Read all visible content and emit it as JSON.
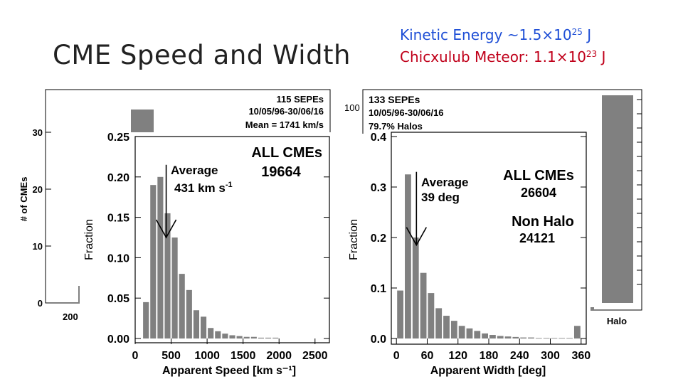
{
  "slide": {
    "title": "CME Speed and Width",
    "kinetic_energy": {
      "label": "Kinetic Energy ~1.5×10",
      "exponent": "25",
      "unit": " J"
    },
    "meteor": {
      "label": "Chicxulub Meteor: 1.1×10",
      "exponent": "23",
      "unit": " J"
    },
    "colors": {
      "title": "#222222",
      "kinetic": "#1f4fd6",
      "meteor": "#c0001a",
      "bar": "#808080"
    }
  },
  "chart_data": [
    {
      "type": "bar",
      "title": "",
      "xlabel": "Apparent Speed [km s⁻¹]",
      "ylabel": "Fraction",
      "ylim": [
        0,
        0.25
      ],
      "xlim": [
        0,
        2700
      ],
      "bin_width": 100,
      "x_ticks": [
        "0",
        "500",
        "1000",
        "1500",
        "2000",
        "2500"
      ],
      "y_ticks": [
        "0.00",
        "0.05",
        "0.10",
        "0.15",
        "0.20",
        "0.25"
      ],
      "bin_starts": [
        100,
        200,
        300,
        400,
        500,
        600,
        700,
        800,
        900,
        1000,
        1100,
        1200,
        1300,
        1400,
        1500,
        1600,
        1700,
        1800,
        1900
      ],
      "values": [
        0.045,
        0.19,
        0.2,
        0.155,
        0.125,
        0.08,
        0.06,
        0.035,
        0.027,
        0.013,
        0.009,
        0.006,
        0.004,
        0.003,
        0.002,
        0.002,
        0.001,
        0.001,
        0.001
      ],
      "annotations": {
        "all_label": "ALL CMEs",
        "all_count": "19664",
        "avg_label": "Average",
        "avg_value": "431 km s",
        "avg_unit_exp": "-1",
        "arrow_at": 431,
        "arrow_top": 0.215,
        "arrow_tip": 0.125
      }
    },
    {
      "type": "bar",
      "title": "",
      "xlabel": "Apparent Width [deg]",
      "ylabel": "Fraction",
      "ylim": [
        0,
        0.4
      ],
      "xlim": [
        -10,
        370
      ],
      "bin_width": 15,
      "x_ticks": [
        "0",
        "60",
        "120",
        "180",
        "240",
        "300",
        "360"
      ],
      "y_ticks": [
        "0.0",
        "0.1",
        "0.2",
        "0.3",
        "0.4"
      ],
      "bin_starts": [
        0,
        15,
        30,
        45,
        60,
        75,
        90,
        105,
        120,
        135,
        150,
        165,
        180,
        195,
        210,
        225,
        240,
        255,
        270,
        285,
        300,
        315,
        330,
        345
      ],
      "values": [
        0.095,
        0.325,
        0.2,
        0.13,
        0.09,
        0.06,
        0.045,
        0.035,
        0.025,
        0.02,
        0.015,
        0.01,
        0.007,
        0.005,
        0.004,
        0.003,
        0.002,
        0.002,
        0.001,
        0.001,
        0.001,
        0.001,
        0.001,
        0.025
      ],
      "annotations": {
        "all_label": "ALL CMEs",
        "all_count": "26604",
        "nonhalo_label": "Non Halo",
        "nonhalo_count": "24121",
        "avg_label": "Average",
        "avg_value": "39 deg",
        "arrow_at": 39,
        "arrow_top": 0.33,
        "arrow_tip": 0.185
      }
    },
    {
      "type": "bar",
      "title": "",
      "xlabel": "",
      "ylabel": "# of CMEs",
      "ylim": [
        0,
        35
      ],
      "y_ticks": [
        "0",
        "10",
        "20",
        "30"
      ],
      "x_ticks": [
        "200"
      ],
      "visible_bars": [
        {
          "x": "200",
          "value": 3
        },
        {
          "x": "300",
          "value": 34
        }
      ],
      "legend": [
        "115 SEPEs",
        "10/05/96-30/06/16",
        "Mean = 1741 km/s"
      ]
    },
    {
      "type": "bar",
      "title": "",
      "xlabel": "",
      "ylabel": "",
      "y_ticks": [
        "100"
      ],
      "categories": [
        "Halo"
      ],
      "halo_fraction": 0.797,
      "legend": [
        "133 SEPEs",
        "10/05/96-30/06/16",
        "79.7% Halos"
      ]
    }
  ]
}
